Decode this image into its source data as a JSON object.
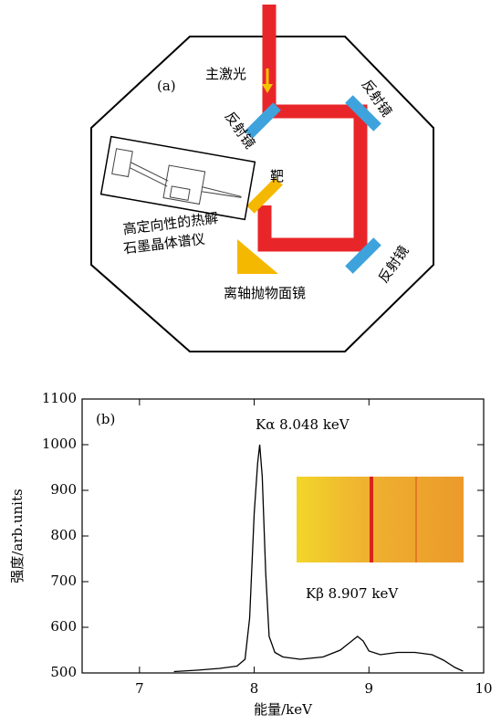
{
  "diagram": {
    "panel_label": "(a)",
    "main_laser": "主激光",
    "mirrors": [
      "反射镜",
      "反射镜",
      "反射镜"
    ],
    "target": "靶",
    "spectrometer": [
      "高定向性的热解",
      "石墨晶体谱仪"
    ],
    "parabolic_mirror": "离轴抛物面镜"
  },
  "chart_data": {
    "type": "line",
    "panel_label": "(b)",
    "xlabel": "能量/keV",
    "ylabel": "强度/arb.units",
    "annotations": [
      "Kα 8.048 keV",
      "Kβ 8.907 keV"
    ],
    "xlim": [
      6.5,
      10
    ],
    "xticks": [
      7,
      8,
      9,
      10
    ],
    "ylim": [
      500,
      1100
    ],
    "yticks": [
      500,
      600,
      700,
      800,
      900,
      1000,
      1100
    ],
    "series": [
      {
        "color": "#000000",
        "x": [
          7.3,
          7.5,
          7.7,
          7.85,
          7.92,
          7.96,
          8.0,
          8.03,
          8.048,
          8.07,
          8.1,
          8.13,
          8.18,
          8.25,
          8.4,
          8.6,
          8.75,
          8.85,
          8.9,
          8.95,
          9.0,
          9.1,
          9.25,
          9.4,
          9.55,
          9.65,
          9.75,
          9.82
        ],
        "values": [
          503,
          506,
          510,
          515,
          530,
          620,
          850,
          960,
          1000,
          930,
          720,
          580,
          545,
          535,
          530,
          535,
          550,
          570,
          580,
          570,
          548,
          540,
          545,
          545,
          540,
          528,
          512,
          504
        ]
      }
    ]
  }
}
